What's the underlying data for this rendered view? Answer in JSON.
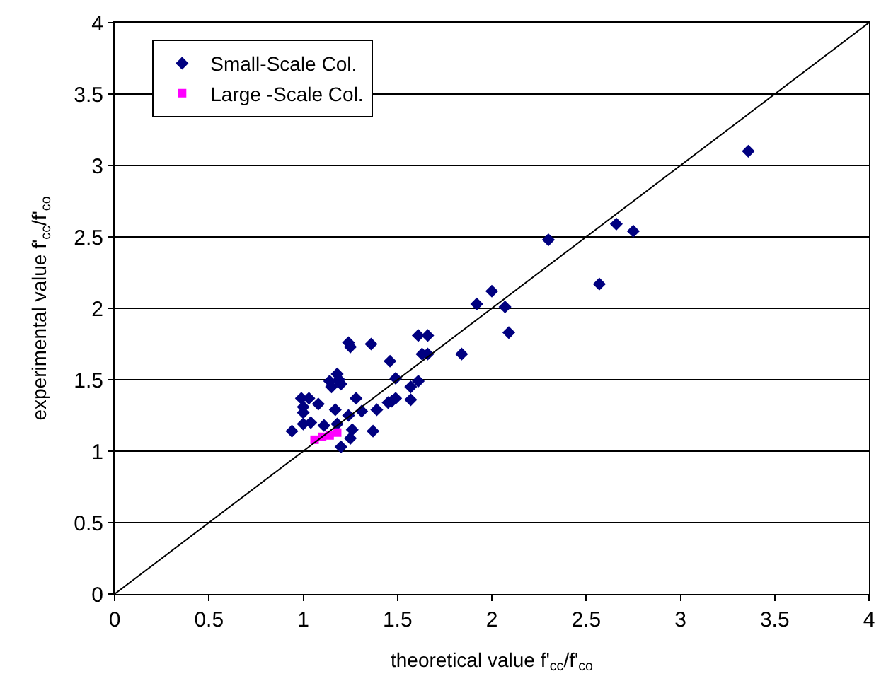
{
  "chart_data": {
    "type": "scatter",
    "xlabel": "theoretical value f'$_{cc}$/f'$_{co}$",
    "ylabel": "experimental value f'$_{cc}$/f'$_{co}$",
    "xlim": [
      0,
      4
    ],
    "ylim": [
      0,
      4
    ],
    "xticks": [
      0,
      0.5,
      1,
      1.5,
      2,
      2.5,
      3,
      3.5,
      4
    ],
    "yticks": [
      0,
      0.5,
      1,
      1.5,
      2,
      2.5,
      3,
      3.5,
      4
    ],
    "grid": "y",
    "legend": "top left",
    "series": [
      {
        "name": "Small-Scale Col.",
        "color": "#000080",
        "marker": "diamond",
        "x": [
          0.94,
          0.99,
          1.03,
          1.0,
          1.0,
          1.0,
          1.04,
          1.08,
          1.11,
          1.14,
          1.15,
          1.18,
          1.19,
          1.2,
          1.17,
          1.18,
          1.2,
          1.24,
          1.25,
          1.26,
          1.25,
          1.28,
          1.31,
          1.24,
          1.36,
          1.37,
          1.39,
          1.46,
          1.45,
          1.47,
          1.49,
          1.49,
          1.57,
          1.57,
          1.61,
          1.61,
          1.66,
          1.63,
          1.66,
          1.84,
          1.92,
          2.0,
          2.07,
          2.09,
          2.3,
          2.57,
          2.66,
          2.75,
          3.36
        ],
        "values": [
          1.14,
          1.37,
          1.37,
          1.31,
          1.27,
          1.19,
          1.2,
          1.33,
          1.18,
          1.49,
          1.45,
          1.54,
          1.5,
          1.47,
          1.29,
          1.19,
          1.03,
          1.76,
          1.73,
          1.15,
          1.09,
          1.37,
          1.28,
          1.25,
          1.75,
          1.14,
          1.29,
          1.63,
          1.34,
          1.35,
          1.37,
          1.51,
          1.45,
          1.36,
          1.49,
          1.81,
          1.81,
          1.68,
          1.68,
          1.68,
          2.03,
          2.12,
          2.01,
          1.83,
          2.48,
          2.17,
          2.59,
          2.54,
          3.1
        ]
      },
      {
        "name": "Large -Scale Col.",
        "color": "#ff00ff",
        "marker": "square",
        "x": [
          1.06,
          1.1,
          1.14,
          1.18
        ],
        "values": [
          1.08,
          1.1,
          1.11,
          1.13
        ]
      },
      {
        "type": "line",
        "color": "#000000",
        "marker": "none",
        "line_style": "solid",
        "x": [
          0,
          4
        ],
        "values": [
          0,
          4
        ]
      }
    ]
  }
}
